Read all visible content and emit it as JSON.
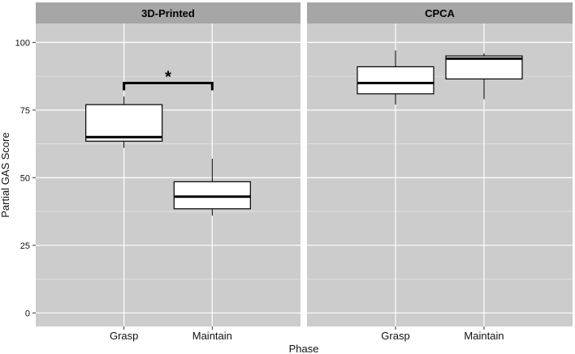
{
  "chart_data": {
    "type": "boxplot",
    "xlabel": "Phase",
    "ylabel": "Partial GAS Score",
    "ylim": [
      -5,
      107
    ],
    "yticks": [
      0,
      25,
      50,
      75,
      100
    ],
    "categories": [
      "Grasp",
      "Maintain"
    ],
    "panels": [
      {
        "name": "3D-Printed",
        "boxes": [
          {
            "category": "Grasp",
            "min": 61,
            "q1": 63.5,
            "median": 65,
            "q3": 77,
            "max": 80
          },
          {
            "category": "Maintain",
            "min": 36,
            "q1": 38.5,
            "median": 43,
            "q3": 48.5,
            "max": 57
          }
        ],
        "significance": {
          "from": "Grasp",
          "to": "Maintain",
          "y": 85,
          "label": "*"
        }
      },
      {
        "name": "CPCA",
        "boxes": [
          {
            "category": "Grasp",
            "min": 77,
            "q1": 81,
            "median": 85,
            "q3": 91,
            "max": 97
          },
          {
            "category": "Maintain",
            "min": 79,
            "q1": 86.5,
            "median": 94,
            "q3": 95,
            "max": 96
          }
        ]
      }
    ],
    "grid": true,
    "colors": {
      "panel_background": "#cccccc",
      "strip_background": "#a6a6a6",
      "grid": "#ffffff",
      "box_fill": "#ffffff",
      "box_line": "#000000"
    }
  }
}
